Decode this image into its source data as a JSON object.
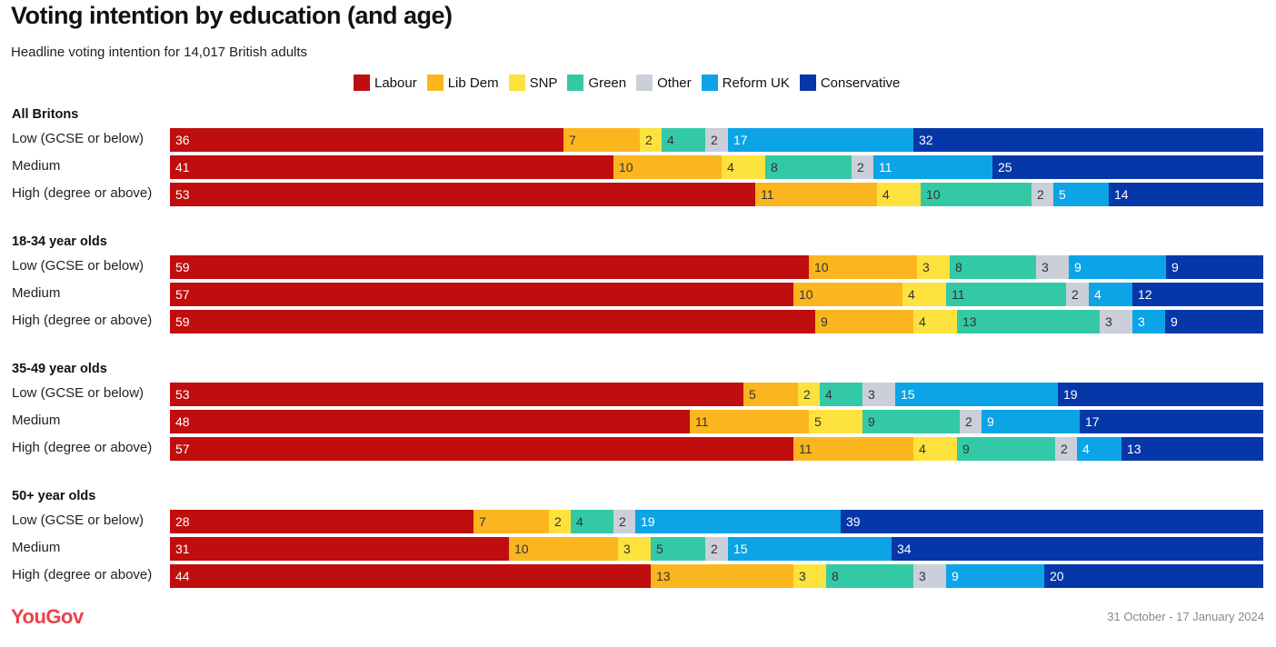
{
  "title": "Voting intention by education (and age)",
  "subtitle": "Headline voting intention for 14,017 British adults",
  "footer": {
    "logo": "YouGov",
    "date": "31 October - 17 January 2024"
  },
  "colors": {
    "Labour": "#c00d0d",
    "Lib Dem": "#fbb61f",
    "SNP": "#fde23e",
    "Green": "#33c9a7",
    "Other": "#cbcfd9",
    "Reform UK": "#0ca4e6",
    "Conservative": "#0637a8"
  },
  "chart_data": {
    "type": "bar",
    "orientation": "horizontal",
    "stacked": true,
    "legend": {
      "placement": "top-center"
    },
    "series_order": [
      "Labour",
      "Lib Dem",
      "SNP",
      "Green",
      "Other",
      "Reform UK",
      "Conservative"
    ],
    "groups": [
      {
        "name": "All Britons",
        "rows": [
          {
            "label": "Low (GCSE or below)",
            "values": [
              36,
              7,
              2,
              4,
              2,
              17,
              32
            ]
          },
          {
            "label": "Medium",
            "values": [
              41,
              10,
              4,
              8,
              2,
              11,
              25
            ]
          },
          {
            "label": "High (degree or above)",
            "values": [
              53,
              11,
              4,
              10,
              2,
              5,
              14
            ]
          }
        ]
      },
      {
        "name": "18-34 year olds",
        "rows": [
          {
            "label": "Low (GCSE or below)",
            "values": [
              59,
              10,
              3,
              8,
              3,
              9,
              9
            ]
          },
          {
            "label": "Medium",
            "values": [
              57,
              10,
              4,
              11,
              2,
              4,
              12
            ]
          },
          {
            "label": "High (degree or above)",
            "values": [
              59,
              9,
              4,
              13,
              3,
              3,
              9
            ]
          }
        ]
      },
      {
        "name": "35-49 year olds",
        "rows": [
          {
            "label": "Low (GCSE or below)",
            "values": [
              53,
              5,
              2,
              4,
              3,
              15,
              19
            ]
          },
          {
            "label": "Medium",
            "values": [
              48,
              11,
              5,
              9,
              2,
              9,
              17
            ]
          },
          {
            "label": "High (degree or above)",
            "values": [
              57,
              11,
              4,
              9,
              2,
              4,
              13
            ]
          }
        ]
      },
      {
        "name": "50+ year olds",
        "rows": [
          {
            "label": "Low (GCSE or below)",
            "values": [
              28,
              7,
              2,
              4,
              2,
              19,
              39
            ]
          },
          {
            "label": "Medium",
            "values": [
              31,
              10,
              3,
              5,
              2,
              15,
              34
            ]
          },
          {
            "label": "High (degree or above)",
            "values": [
              44,
              13,
              3,
              8,
              3,
              9,
              20
            ]
          }
        ]
      }
    ]
  }
}
